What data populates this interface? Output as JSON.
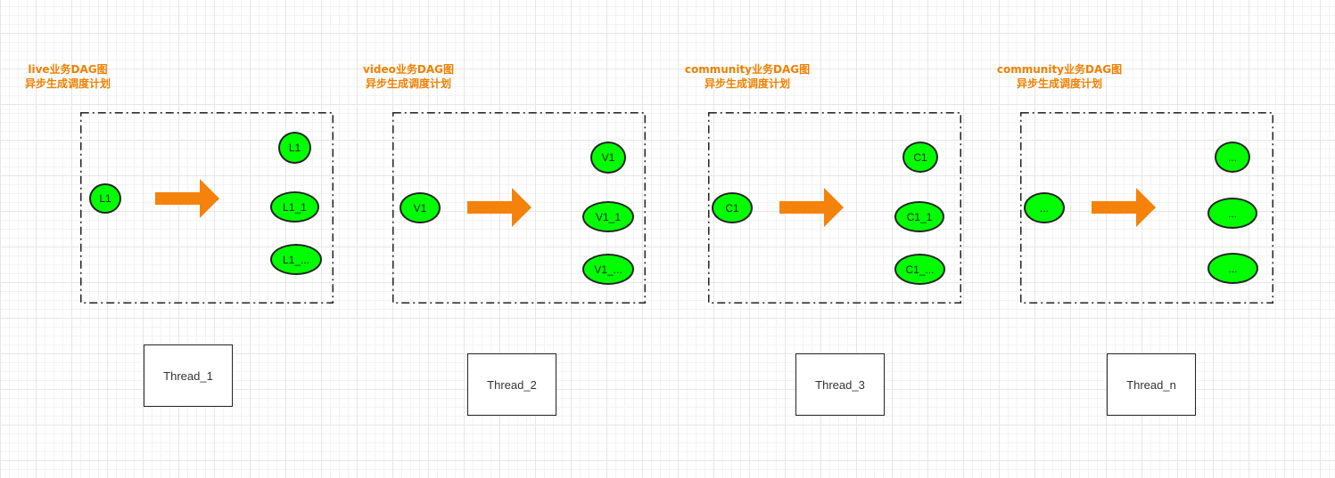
{
  "groups": [
    {
      "title_line1": "live业务DAG图",
      "title_line2": "异步生成调度计划",
      "source": "L1",
      "targets": [
        "L1",
        "L1_1",
        "L1_..."
      ],
      "thread": "Thread_1"
    },
    {
      "title_line1": "video业务DAG图",
      "title_line2": "异步生成调度计划",
      "source": "V1",
      "targets": [
        "V1",
        "V1_1",
        "V1_..."
      ],
      "thread": "Thread_2"
    },
    {
      "title_line1": "community业务DAG图",
      "title_line2": "异步生成调度计划",
      "source": "C1",
      "targets": [
        "C1",
        "C1_1",
        "C1_..."
      ],
      "thread": "Thread_3"
    },
    {
      "title_line1": "community业务DAG图",
      "title_line2": "异步生成调度计划",
      "source": "...",
      "targets": [
        "...",
        "...",
        "..."
      ],
      "thread": "Thread_n"
    }
  ],
  "colors": {
    "title": "#f08000",
    "arrow": "#f5820a",
    "node_fill": "#00ff00",
    "node_stroke": "#222222"
  }
}
